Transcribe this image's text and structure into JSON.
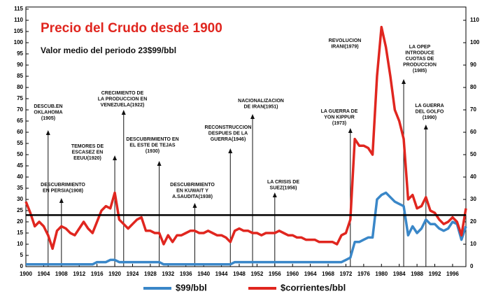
{
  "chart_data": {
    "type": "line",
    "title": "Precio del Crudo desde 1900",
    "subtitle": "Valor medio del periodo 23$99/bbl",
    "x": [
      1900,
      1901,
      1902,
      1903,
      1904,
      1905,
      1906,
      1907,
      1908,
      1909,
      1910,
      1911,
      1912,
      1913,
      1914,
      1915,
      1916,
      1917,
      1918,
      1919,
      1920,
      1921,
      1922,
      1923,
      1924,
      1925,
      1926,
      1927,
      1928,
      1929,
      1930,
      1931,
      1932,
      1933,
      1934,
      1935,
      1936,
      1937,
      1938,
      1939,
      1940,
      1941,
      1942,
      1943,
      1944,
      1945,
      1946,
      1947,
      1948,
      1949,
      1950,
      1951,
      1952,
      1953,
      1954,
      1955,
      1956,
      1957,
      1958,
      1959,
      1960,
      1961,
      1962,
      1963,
      1964,
      1965,
      1966,
      1967,
      1968,
      1969,
      1970,
      1971,
      1972,
      1973,
      1974,
      1975,
      1976,
      1977,
      1978,
      1979,
      1980,
      1981,
      1982,
      1983,
      1984,
      1985,
      1986,
      1987,
      1988,
      1989,
      1990,
      1991,
      1992,
      1993,
      1994,
      1995,
      1996,
      1997,
      1998,
      1999
    ],
    "series": [
      {
        "name": "$99/bbl",
        "color": "#3a87c8",
        "values": [
          1,
          1,
          1,
          1,
          1,
          1,
          1,
          1,
          1,
          1,
          1,
          1,
          1,
          1,
          1,
          1,
          2,
          2,
          2,
          3,
          3,
          2,
          2,
          2,
          2,
          2,
          2,
          2,
          2,
          2,
          2,
          1,
          1,
          1,
          1,
          1,
          1,
          1,
          1,
          1,
          1,
          1,
          1,
          1,
          1,
          1,
          1,
          2,
          2,
          2,
          2,
          2,
          2,
          2,
          2,
          2,
          2,
          2,
          2,
          2,
          2,
          2,
          2,
          2,
          2,
          2,
          2,
          2,
          2,
          2,
          2,
          2,
          3,
          4,
          11,
          11,
          12,
          13,
          13,
          30,
          32,
          33,
          31,
          29,
          28,
          27,
          14,
          18,
          15,
          17,
          21,
          19,
          19,
          17,
          16,
          17,
          20,
          19,
          12,
          18
        ]
      },
      {
        "name": "$corrientes/bbl",
        "color": "#e0261f",
        "values": [
          29,
          24,
          18,
          20,
          18,
          14,
          8,
          16,
          18,
          17,
          15,
          14,
          17,
          20,
          17,
          15,
          20,
          25,
          27,
          26,
          33,
          21,
          19,
          17,
          19,
          21,
          22,
          16,
          16,
          15,
          15,
          10,
          14,
          11,
          14,
          14,
          15,
          16,
          16,
          15,
          15,
          16,
          15,
          14,
          14,
          13,
          11,
          16,
          17,
          16,
          16,
          15,
          15,
          14,
          15,
          15,
          15,
          16,
          15,
          14,
          14,
          13,
          13,
          12,
          12,
          12,
          11,
          11,
          11,
          11,
          10,
          14,
          15,
          21,
          57,
          54,
          54,
          53,
          50,
          85,
          107,
          98,
          85,
          70,
          65,
          57,
          30,
          32,
          26,
          27,
          31,
          25,
          24,
          21,
          19,
          20,
          22,
          20,
          14,
          26
        ]
      }
    ],
    "mean_line": 23,
    "xlim": [
      1900,
      1999
    ],
    "xticks": [
      1900,
      1904,
      1908,
      1912,
      1916,
      1920,
      1924,
      1928,
      1932,
      1936,
      1940,
      1944,
      1948,
      1952,
      1956,
      1960,
      1964,
      1968,
      1972,
      1976,
      1980,
      1984,
      1988,
      1992,
      1996
    ],
    "ylim": [
      0,
      115
    ],
    "yticks": [
      0,
      5,
      10,
      15,
      20,
      25,
      30,
      35,
      40,
      45,
      50,
      55,
      60,
      65,
      70,
      75,
      80,
      85,
      90,
      95,
      100,
      105,
      110,
      115
    ],
    "y2lim": [
      0,
      115
    ],
    "y2ticks": [
      0,
      10,
      20,
      30,
      40,
      50,
      60,
      70,
      80,
      90,
      100,
      110
    ],
    "annotations": [
      {
        "year": 1905,
        "lines": [
          "DESCUB.EN",
          "OKLAHOMA",
          "(1905)"
        ]
      },
      {
        "year": 1908,
        "lines": [
          "DESCUBRIMIENTO",
          "EN PERSIA(1908)"
        ]
      },
      {
        "year": 1920,
        "lines": [
          "TEMORES DE",
          "ESCASEZ EN",
          "EEUU(1920)"
        ]
      },
      {
        "year": 1922,
        "lines": [
          "CRECIMIENTO DE",
          "LA PRODUCCION EN",
          "VENEZUELA(1922)"
        ]
      },
      {
        "year": 1930,
        "lines": [
          "DESCUBRIMIENTO EN",
          "EL ESTE DE TEJAS",
          "(1930)"
        ]
      },
      {
        "year": 1938,
        "lines": [
          "DESCUBRIMIENTO",
          "EN KUWAIT Y",
          "A.SAUDITA(1938)"
        ]
      },
      {
        "year": 1946,
        "lines": [
          "RECONSTRUCCION",
          "DESPUES DE LA",
          "GUERRA(1946)"
        ]
      },
      {
        "year": 1951,
        "lines": [
          "NACIONALIZACION",
          "DE IRAN(1951)"
        ]
      },
      {
        "year": 1956,
        "lines": [
          "LA CRISIS DE",
          "SUEZ(1956)"
        ]
      },
      {
        "year": 1973,
        "lines": [
          "LA GUERRA DE",
          "YON KIPPUR",
          "(1973)"
        ]
      },
      {
        "year": 1979,
        "lines": [
          "REVOLUCION",
          "IRANI(1979)"
        ]
      },
      {
        "year": 1985,
        "lines": [
          "LA OPEP",
          "INTRODUCE",
          "CUOTAS DE",
          "PRODUCCION",
          "(1985)"
        ]
      },
      {
        "year": 1990,
        "lines": [
          "LA GUERRA",
          "DEL GOLFO",
          "(1990)"
        ]
      }
    ]
  }
}
